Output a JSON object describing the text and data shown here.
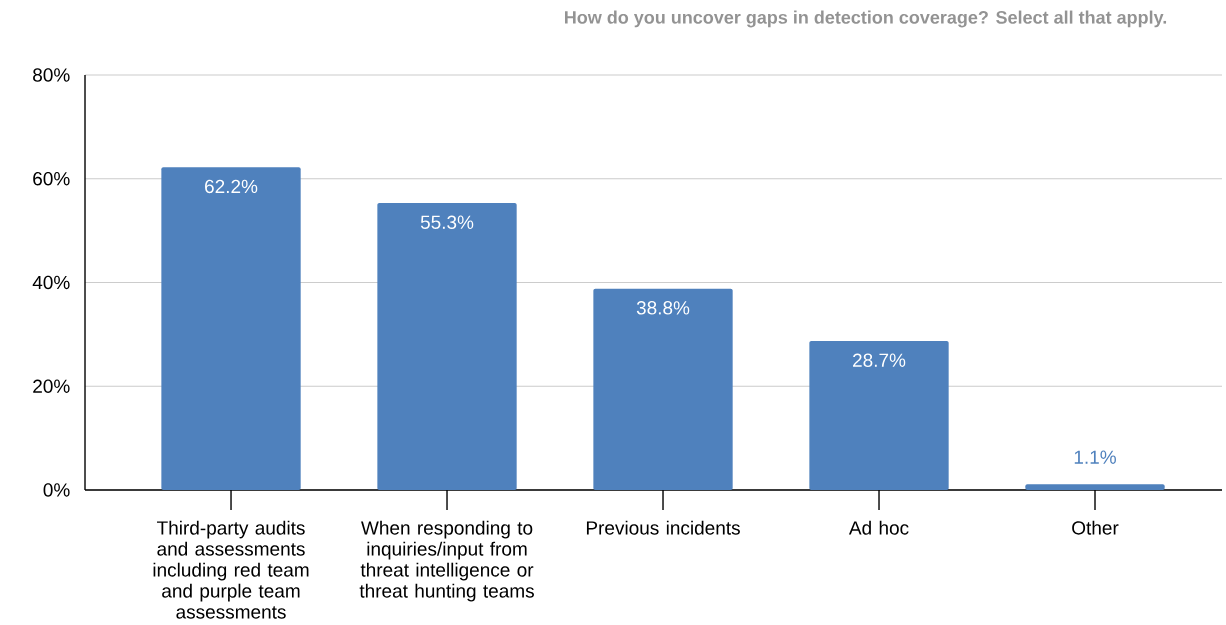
{
  "chart_data": {
    "type": "bar",
    "title": "How do you uncover gaps in detection coverage? Select all that apply.",
    "categories": [
      "Third-party audits and assessments including red team and purple team assessments",
      "When responding to inquiries/input from threat intelligence or threat hunting teams",
      "Previous incidents",
      "Ad hoc",
      "Other"
    ],
    "values": [
      62.2,
      55.3,
      38.8,
      28.7,
      1.1
    ],
    "value_labels": [
      "62.2%",
      "55.3%",
      "38.8%",
      "28.7%",
      "1.1%"
    ],
    "color": "#4f81bd",
    "ylim": [
      0,
      80
    ],
    "yticks": [
      {
        "value": 0,
        "label": "0%"
      },
      {
        "value": 20,
        "label": "20%"
      },
      {
        "value": 40,
        "label": "40%"
      },
      {
        "value": 60,
        "label": "60%"
      },
      {
        "value": 80,
        "label": "80%"
      }
    ],
    "grid": "y"
  }
}
